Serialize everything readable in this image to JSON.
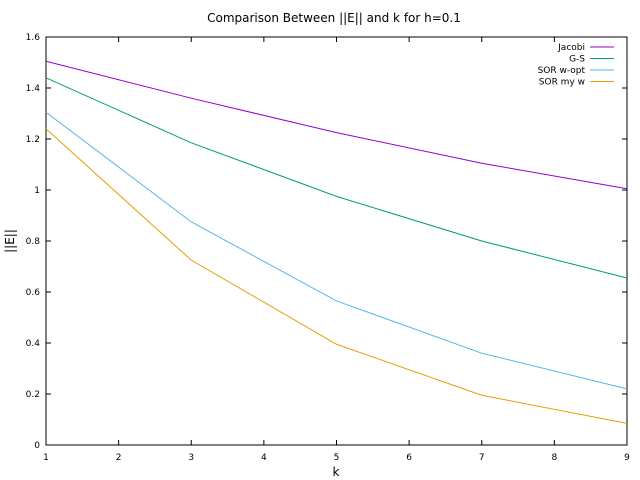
{
  "chart_data": {
    "type": "line",
    "title": "Comparison Between ||E|| and k for h=0.1",
    "xlabel": "k",
    "ylabel": "||E||",
    "x": [
      1,
      3,
      5,
      7,
      9
    ],
    "xlim": [
      1,
      9
    ],
    "ylim": [
      0,
      1.6
    ],
    "xticks": [
      1,
      2,
      3,
      4,
      5,
      6,
      7,
      8,
      9
    ],
    "yticks": [
      0,
      0.2,
      0.4,
      0.6,
      0.8,
      1,
      1.2,
      1.4,
      1.6
    ],
    "xtick_labels": [
      "1",
      "2",
      "3",
      "4",
      "5",
      "6",
      "7",
      "8",
      "9"
    ],
    "ytick_labels": [
      "0",
      "0.2",
      "0.4",
      "0.6",
      "0.8",
      "1",
      "1.2",
      "1.4",
      "1.6"
    ],
    "grid": false,
    "legend_position": "top-right",
    "series": [
      {
        "name": "Jacobi",
        "color": "#9400d3",
        "values": [
          1.505,
          1.36,
          1.225,
          1.105,
          1.005
        ]
      },
      {
        "name": "G-S",
        "color": "#009e73",
        "values": [
          1.44,
          1.185,
          0.975,
          0.8,
          0.655
        ]
      },
      {
        "name": "SOR w-opt",
        "color": "#56b4e9",
        "values": [
          1.305,
          0.875,
          0.565,
          0.36,
          0.22
        ]
      },
      {
        "name": "SOR my w",
        "color": "#e69f00",
        "values": [
          1.24,
          0.725,
          0.395,
          0.195,
          0.085
        ]
      }
    ]
  }
}
